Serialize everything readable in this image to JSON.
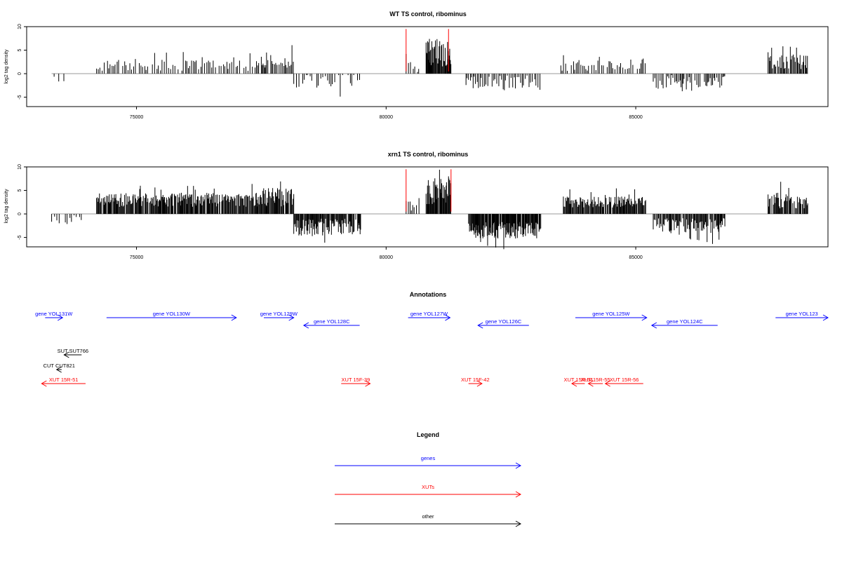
{
  "colors": {
    "genes": "#0000ff",
    "xuts": "#ff0000",
    "other": "#000000",
    "baseline": "#999999",
    "marker": "#ff0000"
  },
  "chart_data": [
    {
      "type": "bar",
      "title": "WT TS control, ribominus",
      "ylabel": "log2 tag density",
      "xlim": [
        72800,
        88850
      ],
      "ylim": [
        -7,
        10
      ],
      "xticks": [
        75000,
        80000,
        85000
      ],
      "yticks": [
        -5,
        0,
        5,
        10
      ],
      "marker_lines_x": [
        80400,
        81250
      ],
      "regions": [
        {
          "start": 73350,
          "end": 73600,
          "sign": -1,
          "mean": 1.2,
          "amp": 0.8,
          "step": 80
        },
        {
          "start": 74200,
          "end": 77450,
          "sign": 1,
          "mean": 1.8,
          "amp": 1.2,
          "step": 35
        },
        {
          "start": 77500,
          "end": 78150,
          "sign": 1,
          "mean": 2.8,
          "amp": 1.8,
          "step": 25
        },
        {
          "start": 78150,
          "end": 79500,
          "sign": -1,
          "mean": 1.5,
          "amp": 1.5,
          "step": 40
        },
        {
          "start": 80400,
          "end": 80700,
          "sign": 1,
          "mean": 1.5,
          "amp": 1.2,
          "step": 40
        },
        {
          "start": 80800,
          "end": 81300,
          "sign": 1,
          "mean": 4.5,
          "amp": 3.0,
          "step": 12
        },
        {
          "start": 81600,
          "end": 83100,
          "sign": -1,
          "mean": 1.8,
          "amp": 1.4,
          "step": 30
        },
        {
          "start": 83500,
          "end": 85200,
          "sign": 1,
          "mean": 1.8,
          "amp": 1.2,
          "step": 35
        },
        {
          "start": 85350,
          "end": 86800,
          "sign": -1,
          "mean": 2.0,
          "amp": 1.8,
          "step": 28
        },
        {
          "start": 87650,
          "end": 88450,
          "sign": 1,
          "mean": 2.5,
          "amp": 1.6,
          "step": 20
        }
      ]
    },
    {
      "type": "bar",
      "title": "xrn1 TS control, ribominus",
      "ylabel": "log2 tag density",
      "xlim": [
        72800,
        88850
      ],
      "ylim": [
        -7,
        10
      ],
      "xticks": [
        75000,
        80000,
        85000
      ],
      "yticks": [
        -5,
        0,
        5,
        10
      ],
      "marker_lines_x": [
        80400,
        81300
      ],
      "regions": [
        {
          "start": 73300,
          "end": 73900,
          "sign": -1,
          "mean": 1.2,
          "amp": 1.0,
          "step": 50
        },
        {
          "start": 74200,
          "end": 77500,
          "sign": 1,
          "mean": 3.0,
          "amp": 1.5,
          "step": 14
        },
        {
          "start": 77500,
          "end": 78150,
          "sign": 1,
          "mean": 3.5,
          "amp": 2.0,
          "step": 14
        },
        {
          "start": 78150,
          "end": 79500,
          "sign": -1,
          "mean": 2.8,
          "amp": 1.8,
          "step": 14
        },
        {
          "start": 80400,
          "end": 80700,
          "sign": 1,
          "mean": 1.8,
          "amp": 1.2,
          "step": 40
        },
        {
          "start": 80800,
          "end": 81300,
          "sign": 1,
          "mean": 5.0,
          "amp": 3.0,
          "step": 12
        },
        {
          "start": 81650,
          "end": 83100,
          "sign": -1,
          "mean": 3.5,
          "amp": 1.8,
          "step": 10
        },
        {
          "start": 83550,
          "end": 85200,
          "sign": 1,
          "mean": 2.5,
          "amp": 1.2,
          "step": 14
        },
        {
          "start": 85350,
          "end": 86800,
          "sign": -1,
          "mean": 2.5,
          "amp": 1.6,
          "step": 16
        },
        {
          "start": 87650,
          "end": 88450,
          "sign": 1,
          "mean": 2.8,
          "amp": 1.7,
          "step": 14
        }
      ]
    }
  ],
  "annotations": {
    "title": "Annotations",
    "items": [
      {
        "label": "gene YOL131W",
        "type": "gene",
        "start": 73170,
        "end": 73520,
        "dir": "+",
        "row": 0
      },
      {
        "label": "gene YOL130W",
        "type": "gene",
        "start": 74400,
        "end": 77000,
        "dir": "+",
        "row": 0
      },
      {
        "label": "gene YOL129W",
        "type": "gene",
        "start": 77550,
        "end": 78150,
        "dir": "+",
        "row": 0
      },
      {
        "label": "gene YOL128C",
        "type": "gene",
        "start": 78350,
        "end": 79470,
        "dir": "-",
        "row": 1
      },
      {
        "label": "gene YOL127W",
        "type": "gene",
        "start": 80440,
        "end": 81280,
        "dir": "+",
        "row": 0
      },
      {
        "label": "gene YOL126C",
        "type": "gene",
        "start": 81840,
        "end": 82860,
        "dir": "-",
        "row": 1
      },
      {
        "label": "gene YOL125W",
        "type": "gene",
        "start": 83790,
        "end": 85220,
        "dir": "+",
        "row": 0
      },
      {
        "label": "gene YOL124C",
        "type": "gene",
        "start": 85320,
        "end": 86640,
        "dir": "-",
        "row": 1
      },
      {
        "label": "gene YOL123",
        "type": "gene",
        "start": 87800,
        "end": 88850,
        "dir": "+",
        "row": 0
      },
      {
        "label": "SUT SUT766",
        "type": "other",
        "start": 73550,
        "end": 73900,
        "dir": "-",
        "row": 2
      },
      {
        "label": "CUT CUT821",
        "type": "other",
        "start": 73400,
        "end": 73500,
        "dir": "-",
        "row": 3
      },
      {
        "label": "XUT 15R-51",
        "type": "xut",
        "start": 73100,
        "end": 73980,
        "dir": "-",
        "row": 4
      },
      {
        "label": "XUT 15F-39",
        "type": "xut",
        "start": 79100,
        "end": 79680,
        "dir": "+",
        "row": 4
      },
      {
        "label": "XUT 15F-42",
        "type": "xut",
        "start": 81650,
        "end": 81920,
        "dir": "+",
        "row": 4
      },
      {
        "label": "XUT 15R-54",
        "type": "xut",
        "start": 83720,
        "end": 83980,
        "dir": "-",
        "row": 5
      },
      {
        "label": "XUT 15R-55",
        "type": "xut",
        "start": 84050,
        "end": 84340,
        "dir": "-",
        "row": 5
      },
      {
        "label": "XUT 15R-56",
        "type": "xut",
        "start": 84390,
        "end": 85150,
        "dir": "-",
        "row": 5
      }
    ]
  },
  "legend": {
    "title": "Legend",
    "items": [
      {
        "label": "genes",
        "type": "gene"
      },
      {
        "label": "XUTs",
        "type": "xut"
      },
      {
        "label": "other",
        "type": "other"
      }
    ]
  }
}
